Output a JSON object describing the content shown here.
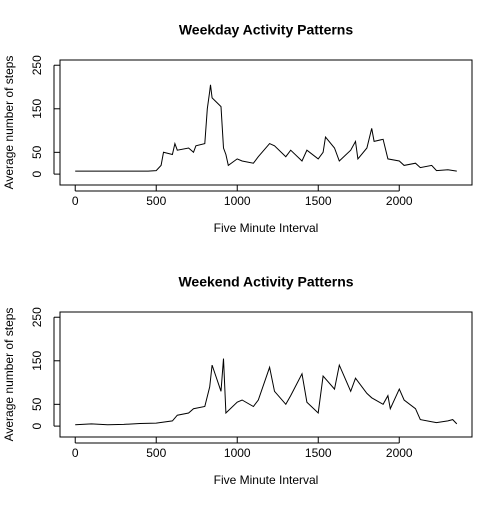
{
  "chart_data": [
    {
      "type": "line",
      "title": "Weekday Activity Patterns",
      "x_label": "Five Minute Interval",
      "y_label": "Average number of steps",
      "x": [
        0,
        100,
        200,
        300,
        400,
        450,
        500,
        530,
        545,
        600,
        615,
        630,
        700,
        730,
        745,
        800,
        815,
        830,
        835,
        845,
        900,
        915,
        930,
        945,
        1000,
        1030,
        1100,
        1130,
        1200,
        1230,
        1300,
        1330,
        1400,
        1430,
        1500,
        1530,
        1545,
        1600,
        1630,
        1700,
        1730,
        1745,
        1800,
        1830,
        1845,
        1900,
        1930,
        2000,
        2030,
        2100,
        2130,
        2200,
        2230,
        2300,
        2355
      ],
      "series": [
        {
          "name": "steps",
          "color": "#000000",
          "values": [
            7,
            7,
            7,
            7,
            7,
            7,
            8,
            20,
            50,
            45,
            70,
            55,
            60,
            50,
            65,
            70,
            150,
            190,
            205,
            175,
            155,
            60,
            45,
            20,
            35,
            30,
            25,
            40,
            70,
            65,
            40,
            55,
            30,
            55,
            35,
            50,
            85,
            60,
            30,
            55,
            75,
            35,
            60,
            105,
            75,
            80,
            35,
            30,
            20,
            25,
            15,
            20,
            8,
            10,
            7
          ]
        }
      ],
      "xlim": [
        -94,
        2449
      ],
      "xticks": [
        0,
        500,
        1000,
        1500,
        2000
      ],
      "ylim": [
        -25,
        262
      ],
      "yticks": [
        0,
        50,
        150,
        250
      ]
    },
    {
      "type": "line",
      "title": "Weekend Activity Patterns",
      "x_label": "Five Minute Interval",
      "y_label": "Average number of steps",
      "x": [
        0,
        100,
        200,
        300,
        400,
        500,
        600,
        630,
        700,
        730,
        800,
        830,
        845,
        900,
        915,
        930,
        1000,
        1030,
        1100,
        1130,
        1200,
        1230,
        1300,
        1330,
        1400,
        1430,
        1500,
        1530,
        1600,
        1630,
        1700,
        1730,
        1800,
        1830,
        1900,
        1930,
        1945,
        2000,
        2030,
        2100,
        2130,
        2200,
        2230,
        2300,
        2330,
        2355
      ],
      "series": [
        {
          "name": "steps",
          "color": "#000000",
          "values": [
            3,
            5,
            3,
            4,
            6,
            7,
            12,
            25,
            30,
            40,
            45,
            90,
            140,
            80,
            155,
            30,
            55,
            60,
            45,
            60,
            135,
            80,
            50,
            70,
            120,
            55,
            30,
            115,
            85,
            140,
            80,
            110,
            75,
            65,
            50,
            70,
            40,
            85,
            60,
            40,
            15,
            10,
            8,
            12,
            15,
            5
          ]
        }
      ],
      "xlim": [
        -94,
        2449
      ],
      "xticks": [
        0,
        500,
        1000,
        1500,
        2000
      ],
      "ylim": [
        -25,
        262
      ],
      "yticks": [
        0,
        50,
        150,
        250
      ]
    }
  ]
}
